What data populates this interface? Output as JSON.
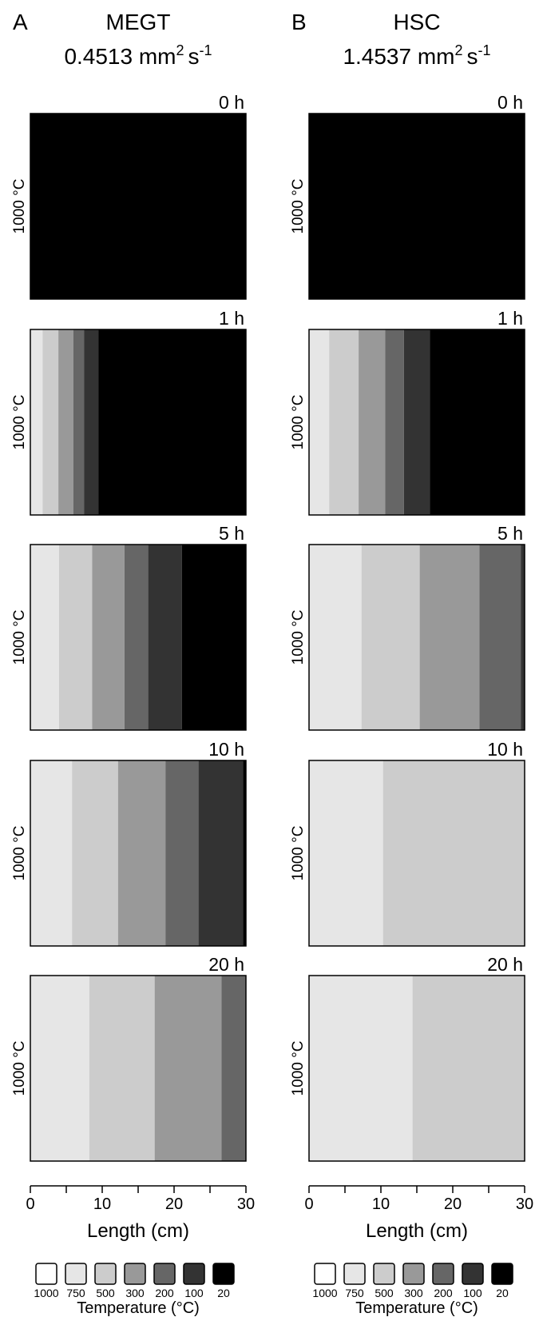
{
  "chart_data": [
    {
      "type": "heatmap",
      "panel_letter": "A",
      "material": "MEGT",
      "diffusivity": "0.4513 mm",
      "diffusivity_unit_suffix": "2",
      "diffusivity_s": "s",
      "diffusivity_s_exp": "-1",
      "ylabel": "1000 °C",
      "xlabel": "Length (cm)",
      "xlim": [
        0,
        30
      ],
      "xticks": [
        0,
        10,
        20,
        30
      ],
      "xtick_labels": [
        "0",
        "10",
        "20",
        "30"
      ],
      "snapshots": [
        {
          "time": "0 h",
          "bands": [
            {
              "level": "20",
              "from": 0,
              "to": 30
            }
          ]
        },
        {
          "time": "1 h",
          "bands": [
            {
              "level": "750",
              "from": 0,
              "to": 1.7
            },
            {
              "level": "500",
              "from": 1.7,
              "to": 3.9
            },
            {
              "level": "300",
              "from": 3.9,
              "to": 6.0
            },
            {
              "level": "200",
              "from": 6.0,
              "to": 7.5
            },
            {
              "level": "100",
              "from": 7.5,
              "to": 9.5
            },
            {
              "level": "20",
              "from": 9.5,
              "to": 30
            }
          ]
        },
        {
          "time": "5 h",
          "bands": [
            {
              "level": "750",
              "from": 0,
              "to": 4.0
            },
            {
              "level": "500",
              "from": 4.0,
              "to": 8.6
            },
            {
              "level": "300",
              "from": 8.6,
              "to": 13.1
            },
            {
              "level": "200",
              "from": 13.1,
              "to": 16.4
            },
            {
              "level": "100",
              "from": 16.4,
              "to": 21.1
            },
            {
              "level": "20",
              "from": 21.1,
              "to": 30
            }
          ]
        },
        {
          "time": "10 h",
          "bands": [
            {
              "level": "750",
              "from": 0,
              "to": 5.8
            },
            {
              "level": "500",
              "from": 5.8,
              "to": 12.2
            },
            {
              "level": "300",
              "from": 12.2,
              "to": 18.8
            },
            {
              "level": "200",
              "from": 18.8,
              "to": 23.4
            },
            {
              "level": "100",
              "from": 23.4,
              "to": 29.6
            },
            {
              "level": "20",
              "from": 29.6,
              "to": 30
            }
          ]
        },
        {
          "time": "20 h",
          "bands": [
            {
              "level": "750",
              "from": 0,
              "to": 8.2
            },
            {
              "level": "500",
              "from": 8.2,
              "to": 17.3
            },
            {
              "level": "300",
              "from": 17.3,
              "to": 26.6
            },
            {
              "level": "200",
              "from": 26.6,
              "to": 30
            }
          ]
        }
      ]
    },
    {
      "type": "heatmap",
      "panel_letter": "B",
      "material": "HSC",
      "diffusivity": "1.4537 mm",
      "diffusivity_unit_suffix": "2",
      "diffusivity_s": "s",
      "diffusivity_s_exp": "-1",
      "ylabel": "1000 °C",
      "xlabel": "Length (cm)",
      "xlim": [
        0,
        30
      ],
      "xticks": [
        0,
        10,
        20,
        30
      ],
      "xtick_labels": [
        "0",
        "10",
        "20",
        "30"
      ],
      "snapshots": [
        {
          "time": "0 h",
          "bands": [
            {
              "level": "20",
              "from": 0,
              "to": 30
            }
          ]
        },
        {
          "time": "1 h",
          "bands": [
            {
              "level": "750",
              "from": 0,
              "to": 2.8
            },
            {
              "level": "500",
              "from": 2.8,
              "to": 6.9
            },
            {
              "level": "300",
              "from": 6.9,
              "to": 10.6
            },
            {
              "level": "200",
              "from": 10.6,
              "to": 13.2
            },
            {
              "level": "100",
              "from": 13.2,
              "to": 16.8
            },
            {
              "level": "20",
              "from": 16.8,
              "to": 30
            }
          ]
        },
        {
          "time": "5 h",
          "bands": [
            {
              "level": "750",
              "from": 0,
              "to": 7.3
            },
            {
              "level": "500",
              "from": 7.3,
              "to": 15.4
            },
            {
              "level": "300",
              "from": 15.4,
              "to": 23.7
            },
            {
              "level": "200",
              "from": 23.7,
              "to": 29.5
            },
            {
              "level": "100",
              "from": 29.5,
              "to": 30
            }
          ]
        },
        {
          "time": "10 h",
          "bands": [
            {
              "level": "750",
              "from": 0,
              "to": 10.3
            },
            {
              "level": "500",
              "from": 10.3,
              "to": 30
            }
          ]
        },
        {
          "time": "20 h",
          "bands": [
            {
              "level": "750",
              "from": 0,
              "to": 14.4
            },
            {
              "level": "500",
              "from": 14.4,
              "to": 30
            }
          ]
        }
      ]
    }
  ],
  "legend": {
    "title": "Temperature (°C)",
    "entries": [
      {
        "label": "1000",
        "color": "#ffffff"
      },
      {
        "label": "750",
        "color": "#e6e6e6"
      },
      {
        "label": "500",
        "color": "#cccccc"
      },
      {
        "label": "300",
        "color": "#999999"
      },
      {
        "label": "200",
        "color": "#666666"
      },
      {
        "label": "100",
        "color": "#333333"
      },
      {
        "label": "20",
        "color": "#000000"
      }
    ]
  }
}
